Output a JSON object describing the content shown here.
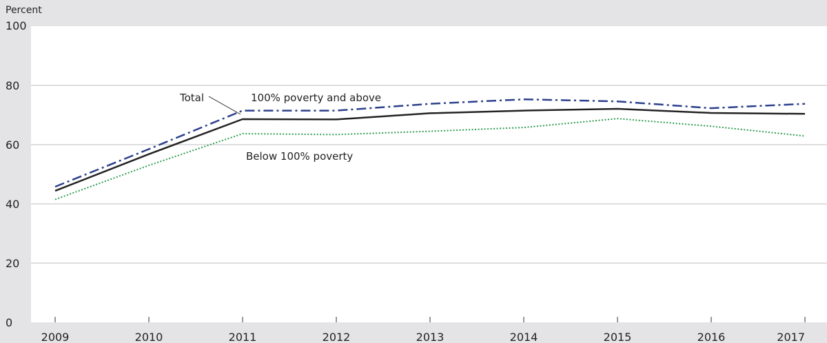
{
  "chart_data": {
    "type": "line",
    "ylabel": "Percent",
    "ylim": [
      0,
      100
    ],
    "y_ticks": [
      0,
      20,
      40,
      60,
      80,
      100
    ],
    "x": [
      2009,
      2010,
      2011,
      2012,
      2013,
      2014,
      2015,
      2016,
      2017
    ],
    "grid": "horizontal",
    "series": [
      {
        "name": "100% poverty and above",
        "values": [
          45.8,
          58.5,
          71.5,
          71.5,
          73.8,
          75.3,
          74.6,
          72.3,
          73.8
        ],
        "color": "#2b3f8c",
        "style": "dash-dot"
      },
      {
        "name": "Total",
        "values": [
          44.4,
          56.8,
          68.6,
          68.5,
          70.6,
          71.5,
          72.1,
          70.7,
          70.4
        ],
        "color": "#222222",
        "style": "solid"
      },
      {
        "name": "Below 100% poverty",
        "values": [
          41.5,
          53.0,
          63.7,
          63.4,
          64.5,
          65.8,
          68.8,
          66.2,
          62.9
        ],
        "color": "#2e9a4e",
        "style": "dotted"
      }
    ],
    "annotations": [
      "Total",
      "100% poverty and above",
      "Below 100% poverty"
    ]
  }
}
